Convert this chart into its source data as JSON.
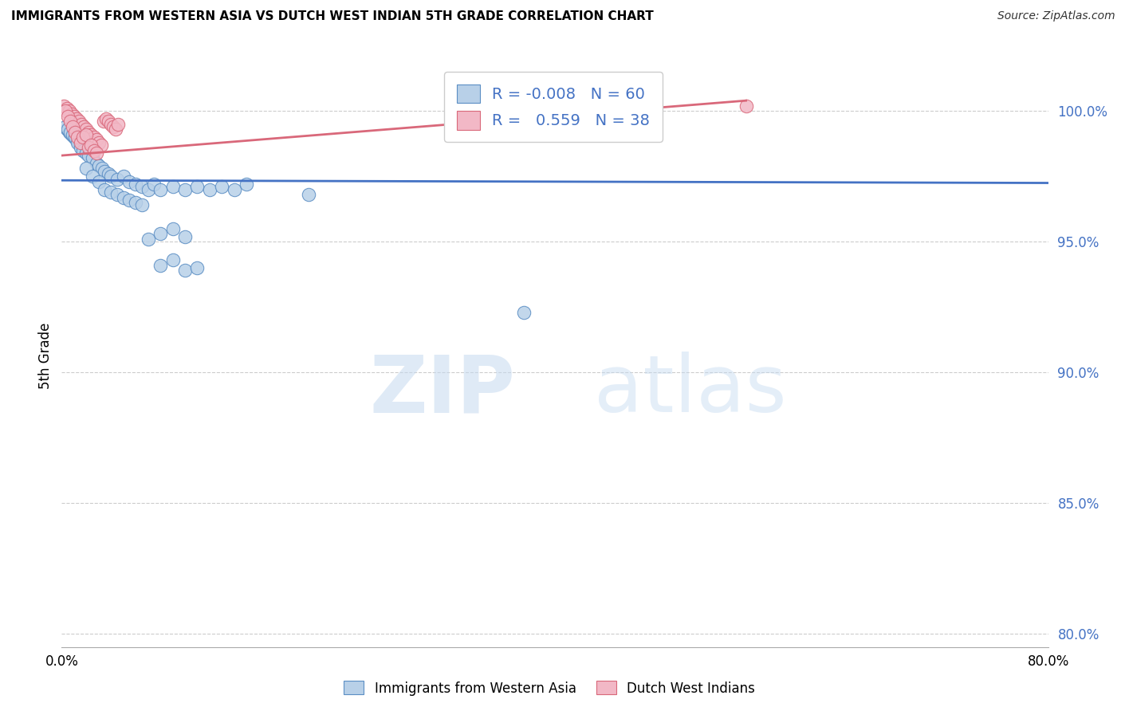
{
  "title": "IMMIGRANTS FROM WESTERN ASIA VS DUTCH WEST INDIAN 5TH GRADE CORRELATION CHART",
  "source": "Source: ZipAtlas.com",
  "ylabel": "5th Grade",
  "xlim": [
    0.0,
    80.0
  ],
  "ylim": [
    79.5,
    101.8
  ],
  "yticks": [
    80.0,
    85.0,
    90.0,
    95.0,
    100.0
  ],
  "ytick_labels": [
    "80.0%",
    "85.0%",
    "90.0%",
    "95.0%",
    "100.0%"
  ],
  "xticks": [
    0.0,
    16.0,
    32.0,
    48.0,
    64.0,
    80.0
  ],
  "xtick_labels": [
    "0.0%",
    "",
    "",
    "",
    "",
    "80.0%"
  ],
  "legend_r_blue": "-0.008",
  "legend_n_blue": "60",
  "legend_r_pink": "0.559",
  "legend_n_pink": "38",
  "watermark_zip": "ZIP",
  "watermark_atlas": "atlas",
  "blue_fill": "#b8d0e8",
  "blue_edge": "#5b8ec4",
  "pink_fill": "#f2b8c6",
  "pink_edge": "#d9687a",
  "blue_line_color": "#4472c4",
  "pink_line_color": "#d9687a",
  "blue_scatter": [
    [
      0.4,
      99.3
    ],
    [
      0.6,
      99.2
    ],
    [
      0.8,
      99.1
    ],
    [
      1.0,
      99.0
    ],
    [
      1.2,
      98.9
    ],
    [
      1.4,
      98.8
    ],
    [
      1.6,
      98.7
    ],
    [
      1.8,
      98.6
    ],
    [
      0.3,
      99.4
    ],
    [
      0.5,
      99.3
    ],
    [
      0.7,
      99.2
    ],
    [
      0.9,
      99.1
    ],
    [
      1.1,
      99.0
    ],
    [
      1.3,
      98.8
    ],
    [
      1.5,
      98.6
    ],
    [
      1.7,
      98.5
    ],
    [
      2.0,
      98.4
    ],
    [
      2.2,
      98.3
    ],
    [
      2.5,
      98.2
    ],
    [
      2.8,
      98.0
    ],
    [
      3.0,
      97.9
    ],
    [
      3.3,
      97.8
    ],
    [
      3.5,
      97.7
    ],
    [
      3.8,
      97.6
    ],
    [
      4.0,
      97.5
    ],
    [
      4.5,
      97.4
    ],
    [
      5.0,
      97.5
    ],
    [
      5.5,
      97.3
    ],
    [
      6.0,
      97.2
    ],
    [
      6.5,
      97.1
    ],
    [
      7.0,
      97.0
    ],
    [
      7.5,
      97.2
    ],
    [
      8.0,
      97.0
    ],
    [
      9.0,
      97.1
    ],
    [
      10.0,
      97.0
    ],
    [
      11.0,
      97.1
    ],
    [
      12.0,
      97.0
    ],
    [
      13.0,
      97.1
    ],
    [
      14.0,
      97.0
    ],
    [
      15.0,
      97.2
    ],
    [
      2.0,
      97.8
    ],
    [
      2.5,
      97.5
    ],
    [
      3.0,
      97.3
    ],
    [
      3.5,
      97.0
    ],
    [
      4.0,
      96.9
    ],
    [
      4.5,
      96.8
    ],
    [
      5.0,
      96.7
    ],
    [
      5.5,
      96.6
    ],
    [
      6.0,
      96.5
    ],
    [
      6.5,
      96.4
    ],
    [
      7.0,
      95.1
    ],
    [
      8.0,
      95.3
    ],
    [
      9.0,
      95.5
    ],
    [
      10.0,
      95.2
    ],
    [
      8.0,
      94.1
    ],
    [
      9.0,
      94.3
    ],
    [
      10.0,
      93.9
    ],
    [
      11.0,
      94.0
    ],
    [
      20.0,
      96.8
    ],
    [
      37.5,
      92.3
    ]
  ],
  "pink_scatter": [
    [
      0.2,
      100.2
    ],
    [
      0.4,
      100.1
    ],
    [
      0.6,
      100.0
    ],
    [
      0.8,
      99.9
    ],
    [
      1.0,
      99.8
    ],
    [
      1.2,
      99.7
    ],
    [
      1.4,
      99.6
    ],
    [
      1.6,
      99.5
    ],
    [
      1.8,
      99.4
    ],
    [
      2.0,
      99.3
    ],
    [
      2.2,
      99.2
    ],
    [
      2.4,
      99.1
    ],
    [
      2.6,
      99.0
    ],
    [
      2.8,
      98.9
    ],
    [
      3.0,
      98.8
    ],
    [
      3.2,
      98.7
    ],
    [
      3.4,
      99.6
    ],
    [
      3.6,
      99.7
    ],
    [
      3.8,
      99.6
    ],
    [
      4.0,
      99.5
    ],
    [
      4.2,
      99.4
    ],
    [
      4.4,
      99.3
    ],
    [
      4.6,
      99.5
    ],
    [
      0.3,
      100.0
    ],
    [
      0.5,
      99.8
    ],
    [
      0.7,
      99.6
    ],
    [
      0.9,
      99.4
    ],
    [
      1.1,
      99.2
    ],
    [
      1.3,
      99.0
    ],
    [
      1.5,
      98.8
    ],
    [
      1.7,
      99.0
    ],
    [
      2.0,
      99.1
    ],
    [
      2.2,
      98.6
    ],
    [
      2.4,
      98.7
    ],
    [
      2.6,
      98.5
    ],
    [
      2.8,
      98.4
    ],
    [
      37.0,
      100.1
    ],
    [
      55.5,
      100.2
    ]
  ],
  "blue_trend_x": [
    0.0,
    80.0
  ],
  "blue_trend_y": [
    97.35,
    97.25
  ],
  "pink_trend_x": [
    0.0,
    55.5
  ],
  "pink_trend_y": [
    98.3,
    100.4
  ]
}
